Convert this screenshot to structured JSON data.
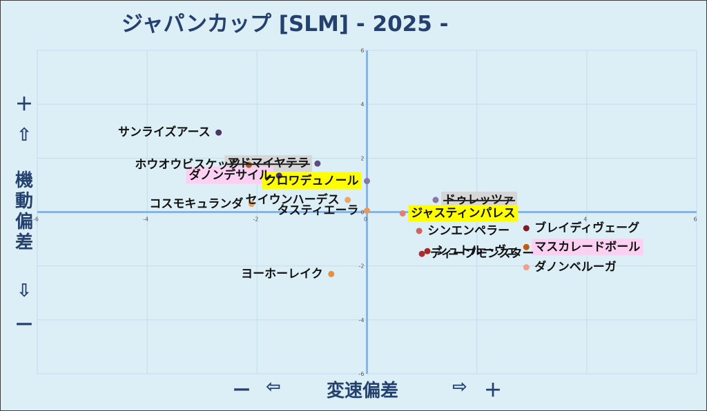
{
  "chart_data": {
    "type": "scatter",
    "title": "ジャパンカップ [SLM]  - 2025 -",
    "xlabel": "変速偏差",
    "ylabel": "機動偏差",
    "x_axis_marks": {
      "minus": "ー",
      "left_arrow": "⇦",
      "right_arrow": "⇨",
      "plus": "＋"
    },
    "y_axis_marks": {
      "plus": "＋",
      "up_arrow": "⇧",
      "down_arrow": "⇩",
      "minus": "ー"
    },
    "xlim": [
      -6,
      6
    ],
    "ylim": [
      -6,
      6
    ],
    "xticks": [
      -6,
      -4,
      -2,
      0,
      2,
      4,
      6
    ],
    "yticks": [
      6,
      4,
      2,
      0,
      -2,
      -4,
      -6
    ],
    "grid": true,
    "points": [
      {
        "name": "サンライズアース",
        "x": -2.7,
        "y": 2.95,
        "color": "#4b3565",
        "highlight": "none"
      },
      {
        "name": "アドマイヤテラ",
        "x": -0.9,
        "y": 1.8,
        "color": "#5f4a82",
        "highlight": "gray"
      },
      {
        "name": "ホウオウビスケッツ",
        "x": -2.15,
        "y": 1.75,
        "color": "#b35a12",
        "highlight": "none"
      },
      {
        "name": "ダノンデサイル",
        "x": -1.6,
        "y": 1.35,
        "color": "#4b3565",
        "highlight": "pink"
      },
      {
        "name": "クロワデュノール",
        "x": 0.0,
        "y": 1.15,
        "color": "#8877a8",
        "highlight": "yellow"
      },
      {
        "name": "セイウンハーデス",
        "x": -0.35,
        "y": 0.45,
        "color": "#e8a76a",
        "highlight": "none"
      },
      {
        "name": "コスモキュランダ",
        "x": -2.1,
        "y": 0.3,
        "color": "#e8a76a",
        "highlight": "none"
      },
      {
        "name": "タスティエーラ",
        "x": 0.0,
        "y": 0.05,
        "color": "#e8995a",
        "highlight": "none"
      },
      {
        "name": "ドゥレッツァ",
        "x": 1.25,
        "y": 0.45,
        "color": "#8877a8",
        "highlight": "gray"
      },
      {
        "name": "ジャスティンパレス",
        "x": 0.65,
        "y": -0.05,
        "color": "#e08070",
        "highlight": "yellow"
      },
      {
        "name": "シンエンペラー",
        "x": 0.95,
        "y": -0.7,
        "color": "#cc6660",
        "highlight": "none"
      },
      {
        "name": "ブレイディヴェーグ",
        "x": 2.9,
        "y": -0.6,
        "color": "#7a1f22",
        "highlight": "none"
      },
      {
        "name": "シュトルーヴェ",
        "x": 1.1,
        "y": -1.45,
        "color": "#a12a28",
        "highlight": "none"
      },
      {
        "name": "ディープモンスター",
        "x": 1.0,
        "y": -1.55,
        "color": "#b02c2c",
        "highlight": "none"
      },
      {
        "name": "マスカレードボール",
        "x": 2.9,
        "y": -1.3,
        "color": "#c05a10",
        "highlight": "pink"
      },
      {
        "name": "ダノンベルーガ",
        "x": 2.9,
        "y": -2.05,
        "color": "#f0a090",
        "highlight": "none"
      },
      {
        "name": "ヨーホーレイク",
        "x": -0.65,
        "y": -2.3,
        "color": "#e89040",
        "highlight": "none"
      }
    ]
  },
  "colors": {
    "background": "#dceef6",
    "title": "#24406e",
    "axis": "#8ab4e0",
    "grid": "#c4dcec",
    "highlight_yellow": "#ffff00",
    "highlight_pink": "#fbd0f2",
    "highlight_gray": "#d6d6d6"
  }
}
